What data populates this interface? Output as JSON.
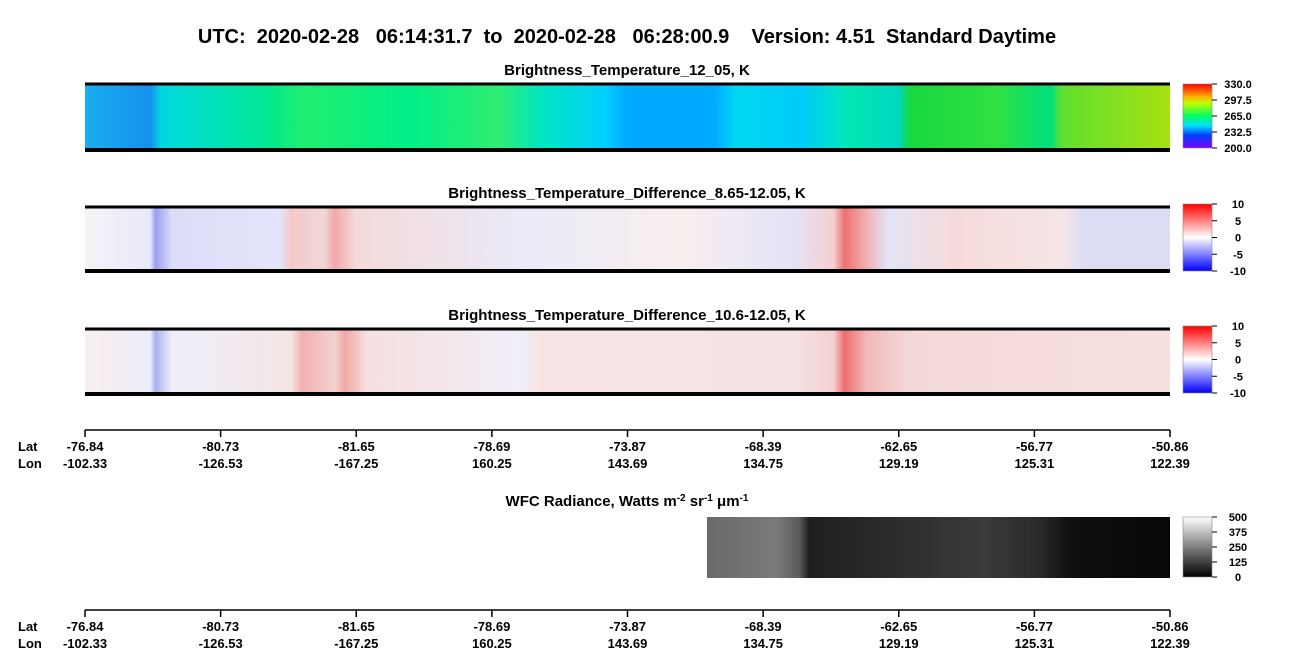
{
  "title": "UTC:  2020-02-28   06:14:31.7  to  2020-02-28   06:28:00.9    Version: 4.51  Standard Daytime",
  "chart_data": [
    {
      "type": "heatmap",
      "title": "Brightness_Temperature_12_05, K",
      "colorbar_lim": [
        200,
        330
      ],
      "colorbar_ticks": [
        {
          "value": 330,
          "label": "330.0"
        },
        {
          "value": 297.5,
          "label": "297.5"
        },
        {
          "value": 265,
          "label": "265.0"
        },
        {
          "value": 232.5,
          "label": "232.5"
        },
        {
          "value": 200,
          "label": "200.0"
        }
      ]
    },
    {
      "type": "heatmap",
      "title": "Brightness_Temperature_Difference_8.65-12.05, K",
      "colorbar_lim": [
        -10,
        10
      ],
      "colorbar_ticks": [
        10,
        5,
        0,
        -5,
        -10
      ]
    },
    {
      "type": "heatmap",
      "title": "Brightness_Temperature_Difference_10.6-12.05, K",
      "colorbar_lim": [
        -10,
        10
      ],
      "colorbar_ticks": [
        10,
        5,
        0,
        -5,
        -10
      ]
    },
    {
      "type": "heatmap",
      "title_parts": [
        "WFC Radiance, Watts m",
        "-2",
        " sr",
        "-1",
        " μm",
        "-1"
      ],
      "colorbar_lim": [
        0,
        500
      ],
      "colorbar_ticks": [
        500,
        375,
        250,
        125,
        0
      ]
    }
  ],
  "axis": {
    "row_labels": [
      "Lat",
      "Lon"
    ],
    "lat": [
      "-76.84",
      "-80.73",
      "-81.65",
      "-78.69",
      "-73.87",
      "-68.39",
      "-62.65",
      "-56.77",
      "-50.86"
    ],
    "lon": [
      "-102.33",
      "-126.53",
      "-167.25",
      "160.25",
      "143.69",
      "134.75",
      "129.19",
      "125.31",
      "122.39"
    ]
  }
}
